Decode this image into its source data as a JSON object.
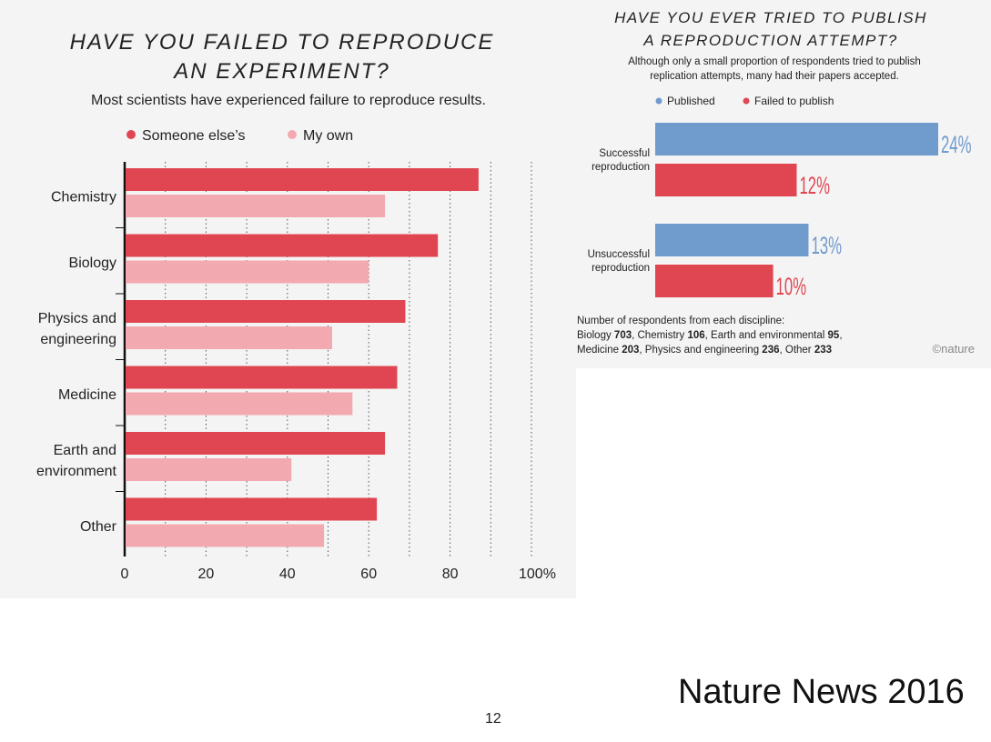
{
  "colors": {
    "someone_else": "#e04651",
    "my_own": "#f2aab0",
    "published": "#6f9bcd",
    "failed": "#e04651",
    "text": "#222222",
    "panel_bg": "#f4f4f4"
  },
  "chart_data": [
    {
      "type": "bar",
      "orientation": "horizontal",
      "title": "HAVE YOU FAILED TO REPRODUCE AN EXPERIMENT?",
      "title_lines": [
        "HAVE YOU FAILED TO REPRODUCE",
        "AN EXPERIMENT?"
      ],
      "subtitle": "Most scientists have experienced failure to reproduce results.",
      "legend": [
        {
          "label": "Someone else’s",
          "color": "#e04651"
        },
        {
          "label": "My own",
          "color": "#f2aab0"
        }
      ],
      "legend_placement": "top",
      "categories": [
        "Chemistry",
        "Biology",
        "Physics and engineering",
        "Medicine",
        "Earth and environment",
        "Other"
      ],
      "category_lines": [
        [
          "Chemistry"
        ],
        [
          "Biology"
        ],
        [
          "Physics and",
          "engineering"
        ],
        [
          "Medicine"
        ],
        [
          "Earth and",
          "environment"
        ],
        [
          "Other"
        ]
      ],
      "series": [
        {
          "name": "Someone else’s",
          "values": [
            87,
            77,
            69,
            67,
            64,
            62
          ]
        },
        {
          "name": "My own",
          "values": [
            64,
            60,
            51,
            56,
            41,
            49
          ]
        }
      ],
      "xlim": [
        0,
        100
      ],
      "xticks": [
        0,
        20,
        40,
        60,
        80,
        100
      ],
      "xtick_labels": [
        "0",
        "20",
        "40",
        "60",
        "80",
        "100%"
      ],
      "grid": true
    },
    {
      "type": "bar",
      "orientation": "horizontal",
      "title": "HAVE YOU EVER TRIED TO PUBLISH A REPRODUCTION ATTEMPT?",
      "title_lines": [
        "HAVE YOU EVER TRIED TO PUBLISH",
        "A REPRODUCTION ATTEMPT?"
      ],
      "subtitle_lines": [
        "Although only a small proportion of respondents tried to publish",
        "replication attempts, many had their papers accepted."
      ],
      "legend": [
        {
          "label": "Published",
          "color": "#6f9bcd"
        },
        {
          "label": "Failed to publish",
          "color": "#e04651"
        }
      ],
      "legend_placement": "top",
      "categories": [
        "Successful reproduction",
        "Unsuccessful reproduction"
      ],
      "category_lines": [
        [
          "Successful",
          "reproduction"
        ],
        [
          "Unsuccessful",
          "reproduction"
        ]
      ],
      "series": [
        {
          "name": "Published",
          "values": [
            24,
            13
          ]
        },
        {
          "name": "Failed to publish",
          "values": [
            12,
            10
          ]
        }
      ],
      "value_labels": [
        [
          "24%",
          "13%"
        ],
        [
          "12%",
          "10%"
        ]
      ],
      "xlim": [
        0,
        24
      ],
      "grid": false,
      "footnote_header": "Number of respondents from each discipline:",
      "footnote_counts": [
        {
          "name": "Biology",
          "count": "703"
        },
        {
          "name": "Chemistry",
          "count": "106"
        },
        {
          "name": "Earth and environmental",
          "count": "95"
        },
        {
          "name": "Medicine",
          "count": "203"
        },
        {
          "name": "Physics and engineering",
          "count": "236"
        },
        {
          "name": "Other",
          "count": "233"
        }
      ],
      "credit": "©nature"
    }
  ],
  "slide": {
    "source": "Nature News 2016",
    "page_number": "12"
  }
}
